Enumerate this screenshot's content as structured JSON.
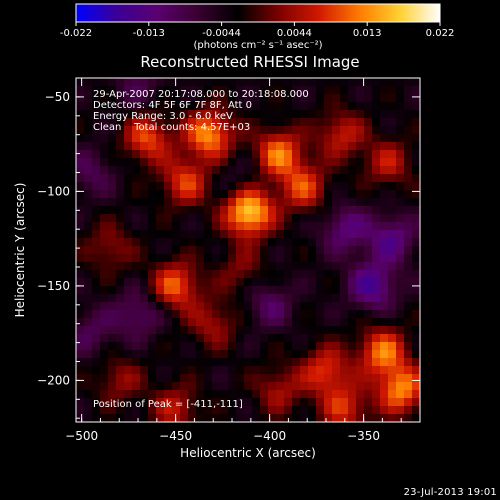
{
  "footer": {
    "timestamp": "23-Jul-2013 19:01"
  },
  "colorbar": {
    "colors": [
      "#0000ff",
      "#3a0096",
      "#5a0070",
      "#3a0030",
      "#000000",
      "#7a0000",
      "#d01800",
      "#ff7a00",
      "#ffd030",
      "#ffffff"
    ],
    "ticks": [
      "-0.022",
      "-0.013",
      "-0.0044",
      "0.0044",
      "0.013",
      "0.022"
    ],
    "unit_label": "(photons cm⁻² s⁻¹ asec⁻²)"
  },
  "chart_data": {
    "type": "heatmap",
    "title": "Reconstructed RHESSI Image",
    "xlabel": "Heliocentric X (arcsec)",
    "ylabel": "Heliocentric Y (arcsec)",
    "xlim": [
      -503,
      -320
    ],
    "ylim": [
      -222,
      -40
    ],
    "xticks": [
      -500,
      -450,
      -400,
      -350
    ],
    "yticks": [
      -50,
      -100,
      -150,
      -200
    ],
    "x_tick_labels": [
      "−500",
      "−450",
      "−400",
      "−350"
    ],
    "y_tick_labels": [
      "−50",
      "−100",
      "−150",
      "−200"
    ],
    "value_range": [
      -0.022,
      0.022
    ],
    "annotations": [
      "29-Apr-2007 20:17:08.000 to 20:18:08.000",
      "Detectors: 4F 5F 6F 7F 8F, Att 0",
      "Energy Range: 3.0 - 6.0 keV",
      "Clean    Total counts: 4.57E+03"
    ],
    "peak_label": "Position of Peak = [-411,-111]",
    "peak": [
      -411,
      -111
    ],
    "sources": [
      {
        "x": -411,
        "y": -111,
        "v": 0.022
      },
      {
        "x": -432,
        "y": -70,
        "v": 0.017
      },
      {
        "x": -395,
        "y": -80,
        "v": 0.015
      },
      {
        "x": -445,
        "y": -95,
        "v": 0.012
      },
      {
        "x": -465,
        "y": -72,
        "v": 0.013
      },
      {
        "x": -382,
        "y": -98,
        "v": 0.012
      },
      {
        "x": -362,
        "y": -70,
        "v": 0.01
      },
      {
        "x": -337,
        "y": -85,
        "v": 0.009
      },
      {
        "x": -450,
        "y": -150,
        "v": 0.014
      },
      {
        "x": -430,
        "y": -170,
        "v": 0.008
      },
      {
        "x": -485,
        "y": -130,
        "v": 0.007
      },
      {
        "x": -415,
        "y": -142,
        "v": 0.006
      },
      {
        "x": -370,
        "y": -195,
        "v": 0.012
      },
      {
        "x": -340,
        "y": -185,
        "v": 0.015
      },
      {
        "x": -330,
        "y": -205,
        "v": 0.016
      },
      {
        "x": -360,
        "y": -215,
        "v": 0.011
      },
      {
        "x": -395,
        "y": -205,
        "v": 0.008
      },
      {
        "x": -480,
        "y": -200,
        "v": 0.007
      },
      {
        "x": -450,
        "y": -215,
        "v": 0.009
      },
      {
        "x": -345,
        "y": -150,
        "v": -0.012
      },
      {
        "x": -335,
        "y": -125,
        "v": -0.01
      },
      {
        "x": -470,
        "y": -165,
        "v": -0.008
      },
      {
        "x": -400,
        "y": -160,
        "v": -0.007
      },
      {
        "x": -415,
        "y": -95,
        "v": -0.004
      },
      {
        "x": -495,
        "y": -90,
        "v": -0.006
      },
      {
        "x": -360,
        "y": -120,
        "v": -0.009
      },
      {
        "x": -470,
        "y": -45,
        "v": -0.005
      },
      {
        "x": -495,
        "y": -175,
        "v": -0.006
      }
    ]
  }
}
